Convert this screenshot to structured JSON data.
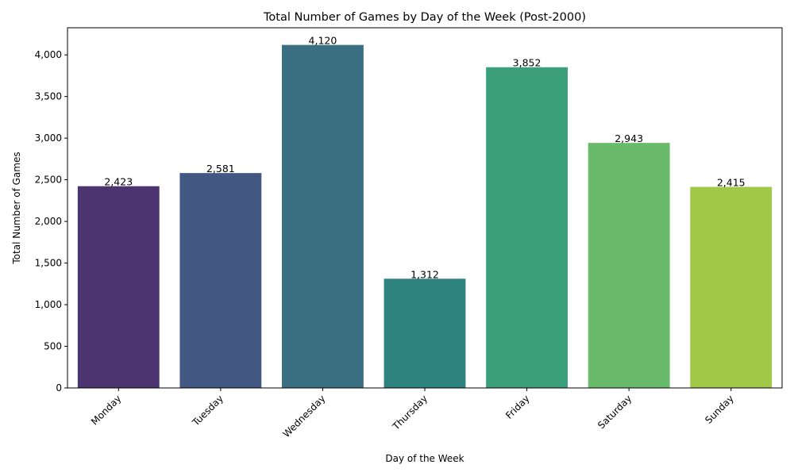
{
  "chart_data": {
    "type": "bar",
    "title": "Total Number of Games by Day of the Week (Post-2000)",
    "xlabel": "Day of the Week",
    "ylabel": "Total Number of Games",
    "categories": [
      "Monday",
      "Tuesday",
      "Wednesday",
      "Thursday",
      "Friday",
      "Saturday",
      "Sunday"
    ],
    "values": [
      2423,
      2581,
      4120,
      1312,
      3852,
      2943,
      2415
    ],
    "data_labels": [
      "2,423",
      "2,581",
      "4,120",
      "1,312",
      "3,852",
      "2,943",
      "2,415"
    ],
    "colors": [
      "#4b3470",
      "#435783",
      "#3a6f82",
      "#2e837e",
      "#3b9f7c",
      "#69bb6b",
      "#a2c84a"
    ],
    "ylim": [
      0,
      4326
    ],
    "yticks": [
      0,
      500,
      1000,
      1500,
      2000,
      2500,
      3000,
      3500,
      4000
    ],
    "ytick_labels": [
      "0",
      "500",
      "1,000",
      "1,500",
      "2,000",
      "2,500",
      "3,000",
      "3,500",
      "4,000"
    ],
    "xtick_rotation": 45,
    "grid": false,
    "legend": "none"
  }
}
